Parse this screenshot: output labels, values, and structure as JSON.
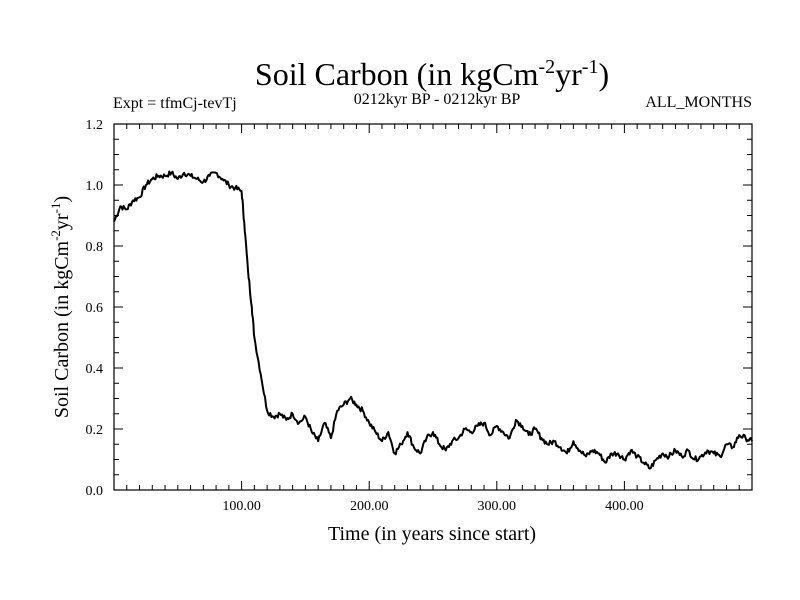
{
  "chart_data": {
    "type": "line",
    "title_main": "Soil Carbon (in kgCm",
    "title_sup1": "-2",
    "title_mid": "yr",
    "title_sup2": "-1",
    "title_end": ")",
    "subtitle_left": "Expt = tfmCj-tevTj",
    "subtitle_center": "0212kyr BP - 0212kyr BP",
    "subtitle_right": "ALL_MONTHS",
    "xlabel": "Time (in years since start)",
    "ylabel_main": "Soil Carbon (in kgCm",
    "ylabel_sup1": "-2",
    "ylabel_mid": "yr",
    "ylabel_sup2": "-1",
    "ylabel_end": ")",
    "xlim": [
      0,
      500
    ],
    "ylim": [
      0,
      1.2
    ],
    "x_ticks": [
      100,
      200,
      300,
      400
    ],
    "x_tick_labels": [
      "100.00",
      "200.00",
      "300.00",
      "400.00"
    ],
    "y_ticks": [
      0,
      0.2,
      0.4,
      0.6,
      0.8,
      1.0,
      1.2
    ],
    "y_tick_labels": [
      "0.0",
      "0.2",
      "0.4",
      "0.6",
      "0.8",
      "1.0",
      "1.2"
    ],
    "x": [
      0,
      5,
      10,
      15,
      20,
      25,
      30,
      35,
      40,
      45,
      50,
      55,
      60,
      65,
      70,
      75,
      80,
      85,
      90,
      95,
      100,
      102,
      105,
      108,
      110,
      115,
      120,
      125,
      130,
      135,
      140,
      145,
      150,
      155,
      160,
      165,
      170,
      175,
      180,
      185,
      190,
      195,
      200,
      205,
      210,
      215,
      220,
      225,
      230,
      235,
      240,
      245,
      250,
      255,
      260,
      265,
      270,
      275,
      280,
      285,
      290,
      295,
      300,
      305,
      310,
      315,
      320,
      325,
      330,
      335,
      340,
      345,
      350,
      355,
      360,
      365,
      370,
      375,
      380,
      385,
      390,
      395,
      400,
      405,
      410,
      415,
      420,
      425,
      430,
      435,
      440,
      445,
      450,
      455,
      460,
      465,
      470,
      475,
      480,
      485,
      490,
      495,
      500
    ],
    "values": [
      0.88,
      0.93,
      0.92,
      0.95,
      0.96,
      1.0,
      1.02,
      1.03,
      1.03,
      1.04,
      1.02,
      1.04,
      1.03,
      1.02,
      1.01,
      1.03,
      1.04,
      1.02,
      1.0,
      0.99,
      0.98,
      0.88,
      0.72,
      0.6,
      0.5,
      0.38,
      0.26,
      0.24,
      0.25,
      0.23,
      0.25,
      0.22,
      0.24,
      0.19,
      0.16,
      0.22,
      0.17,
      0.26,
      0.28,
      0.3,
      0.28,
      0.26,
      0.22,
      0.19,
      0.16,
      0.19,
      0.12,
      0.15,
      0.19,
      0.14,
      0.12,
      0.17,
      0.19,
      0.15,
      0.13,
      0.16,
      0.17,
      0.2,
      0.19,
      0.21,
      0.22,
      0.18,
      0.21,
      0.19,
      0.17,
      0.23,
      0.21,
      0.18,
      0.2,
      0.17,
      0.15,
      0.16,
      0.14,
      0.12,
      0.16,
      0.13,
      0.11,
      0.13,
      0.12,
      0.09,
      0.12,
      0.12,
      0.1,
      0.13,
      0.11,
      0.09,
      0.07,
      0.1,
      0.12,
      0.11,
      0.13,
      0.11,
      0.13,
      0.1,
      0.11,
      0.13,
      0.12,
      0.11,
      0.15,
      0.14,
      0.18,
      0.17,
      0.16
    ]
  }
}
